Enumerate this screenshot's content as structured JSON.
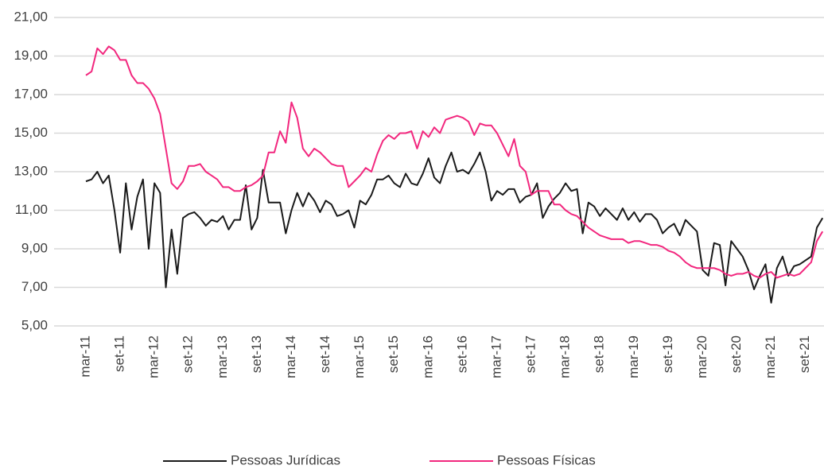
{
  "chart_data": {
    "type": "line",
    "categories": [
      "mar-11",
      null,
      null,
      null,
      null,
      null,
      "set-11",
      null,
      null,
      null,
      null,
      null,
      "mar-12",
      null,
      null,
      null,
      null,
      null,
      "set-12",
      null,
      null,
      null,
      null,
      null,
      "mar-13",
      null,
      null,
      null,
      null,
      null,
      "set-13",
      null,
      null,
      null,
      null,
      null,
      "mar-14",
      null,
      null,
      null,
      null,
      null,
      "set-14",
      null,
      null,
      null,
      null,
      null,
      "mar-15",
      null,
      null,
      null,
      null,
      null,
      "set-15",
      null,
      null,
      null,
      null,
      null,
      "mar-16",
      null,
      null,
      null,
      null,
      null,
      "set-16",
      null,
      null,
      null,
      null,
      null,
      "mar-17",
      null,
      null,
      null,
      null,
      null,
      "set-17",
      null,
      null,
      null,
      null,
      null,
      "mar-18",
      null,
      null,
      null,
      null,
      null,
      "set-18",
      null,
      null,
      null,
      null,
      null,
      "mar-19",
      null,
      null,
      null,
      null,
      null,
      "set-19",
      null,
      null,
      null,
      null,
      null,
      "mar-20",
      null,
      null,
      null,
      null,
      null,
      "set-20",
      null,
      null,
      null,
      null,
      null,
      "mar-21",
      null,
      null,
      null,
      null,
      null,
      "set-21",
      null,
      null,
      null
    ],
    "series": [
      {
        "name": "Pessoas Jurídicas",
        "color": "#1a1a1a",
        "values": [
          12.5,
          12.6,
          13.0,
          12.4,
          12.8,
          11.0,
          8.8,
          12.4,
          10.0,
          11.7,
          12.6,
          9.0,
          12.4,
          11.9,
          7.0,
          10.0,
          7.7,
          10.6,
          10.8,
          10.9,
          10.6,
          10.2,
          10.5,
          10.4,
          10.7,
          10.0,
          10.5,
          10.5,
          12.3,
          10.0,
          10.6,
          13.1,
          11.4,
          11.4,
          11.4,
          9.8,
          11.0,
          11.9,
          11.2,
          11.9,
          11.5,
          10.9,
          11.5,
          11.3,
          10.7,
          10.8,
          11.0,
          10.1,
          11.5,
          11.3,
          11.8,
          12.6,
          12.6,
          12.8,
          12.4,
          12.2,
          12.9,
          12.4,
          12.3,
          12.9,
          13.7,
          12.7,
          12.4,
          13.3,
          14.0,
          13.0,
          13.1,
          12.9,
          13.4,
          14.0,
          13.0,
          11.5,
          12.0,
          11.8,
          12.1,
          12.1,
          11.4,
          11.7,
          11.8,
          12.4,
          10.6,
          11.2,
          11.6,
          11.9,
          12.4,
          12.0,
          12.1,
          9.8,
          11.4,
          11.2,
          10.7,
          11.1,
          10.8,
          10.5,
          11.1,
          10.5,
          10.9,
          10.4,
          10.8,
          10.8,
          10.5,
          9.8,
          10.1,
          10.3,
          9.7,
          10.5,
          10.2,
          9.9,
          7.9,
          7.6,
          9.3,
          9.2,
          7.1,
          9.4,
          9.0,
          8.6,
          7.9,
          6.9,
          7.6,
          8.2,
          6.2,
          8.0,
          8.6,
          7.6,
          8.1,
          8.2,
          8.4,
          8.6,
          10.1,
          10.6
        ]
      },
      {
        "name": "Pessoas Físicas",
        "color": "#f2277e",
        "values": [
          18.0,
          18.2,
          19.4,
          19.1,
          19.5,
          19.3,
          18.8,
          18.8,
          18.0,
          17.6,
          17.6,
          17.3,
          16.8,
          16.0,
          14.2,
          12.4,
          12.1,
          12.5,
          13.3,
          13.3,
          13.4,
          13.0,
          12.8,
          12.6,
          12.2,
          12.2,
          12.0,
          12.0,
          12.2,
          12.3,
          12.5,
          12.8,
          14.0,
          14.0,
          15.1,
          14.5,
          16.6,
          15.8,
          14.2,
          13.8,
          14.2,
          14.0,
          13.7,
          13.4,
          13.3,
          13.3,
          12.2,
          12.5,
          12.8,
          13.2,
          13.0,
          13.9,
          14.6,
          14.9,
          14.7,
          15.0,
          15.0,
          15.1,
          14.2,
          15.1,
          14.8,
          15.3,
          15.0,
          15.7,
          15.8,
          15.9,
          15.8,
          15.6,
          14.9,
          15.5,
          15.4,
          15.4,
          15.0,
          14.4,
          13.8,
          14.7,
          13.3,
          13.0,
          11.8,
          12.0,
          12.0,
          12.0,
          11.3,
          11.3,
          11.0,
          10.8,
          10.7,
          10.4,
          10.1,
          9.9,
          9.7,
          9.6,
          9.5,
          9.5,
          9.5,
          9.3,
          9.4,
          9.4,
          9.3,
          9.2,
          9.2,
          9.1,
          8.9,
          8.8,
          8.6,
          8.3,
          8.1,
          8.0,
          8.0,
          8.0,
          8.0,
          7.9,
          7.7,
          7.6,
          7.7,
          7.7,
          7.8,
          7.6,
          7.5,
          7.7,
          7.8,
          7.5,
          7.6,
          7.7,
          7.6,
          7.7,
          8.0,
          8.3,
          9.4,
          9.9
        ]
      }
    ],
    "ylim": [
      5,
      21
    ],
    "yticks": [
      {
        "value": 5,
        "label": "5,00"
      },
      {
        "value": 7,
        "label": "7,00"
      },
      {
        "value": 9,
        "label": "9,00"
      },
      {
        "value": 11,
        "label": "11,00"
      },
      {
        "value": 13,
        "label": "13,00"
      },
      {
        "value": 15,
        "label": "15,00"
      },
      {
        "value": 17,
        "label": "17,00"
      },
      {
        "value": 19,
        "label": "19,00"
      },
      {
        "value": 21,
        "label": "21,00"
      }
    ],
    "grid": true,
    "legend": "bottom"
  }
}
